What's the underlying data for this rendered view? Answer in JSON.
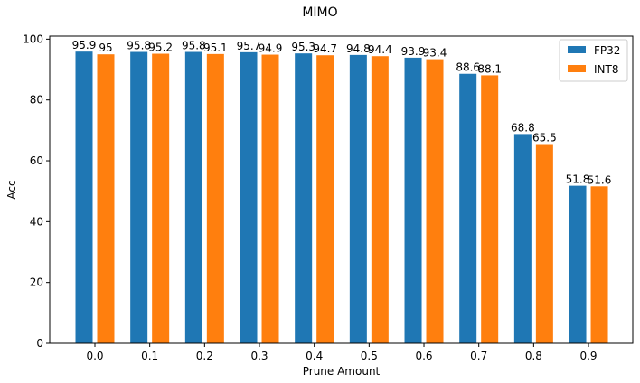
{
  "chart_data": {
    "type": "bar",
    "title": "MIMO",
    "xlabel": "Prune Amount",
    "ylabel": "Acc",
    "categories": [
      "0.0",
      "0.1",
      "0.2",
      "0.3",
      "0.4",
      "0.5",
      "0.6",
      "0.7",
      "0.8",
      "0.9"
    ],
    "series": [
      {
        "name": "FP32",
        "color": "#1f77b4",
        "values": [
          95.9,
          95.8,
          95.8,
          95.7,
          95.3,
          94.8,
          93.9,
          88.6,
          68.8,
          51.8
        ],
        "labels": [
          "95.9",
          "95.8",
          "95.8",
          "95.7",
          "95.3",
          "94.8",
          "93.9",
          "88.6",
          "68.8",
          "51.8"
        ]
      },
      {
        "name": "INT8",
        "color": "#ff7f0e",
        "values": [
          95.0,
          95.2,
          95.1,
          94.9,
          94.7,
          94.4,
          93.4,
          88.1,
          65.5,
          51.6
        ],
        "labels": [
          "95",
          "95.2",
          "95.1",
          "94.9",
          "94.7",
          "94.4",
          "93.4",
          "88.1",
          "65.5",
          "51.6"
        ]
      }
    ],
    "ylim": [
      0,
      101
    ],
    "yticks": [
      "0",
      "20",
      "40",
      "60",
      "80",
      "100"
    ],
    "legend": "top-right",
    "grid": false
  }
}
